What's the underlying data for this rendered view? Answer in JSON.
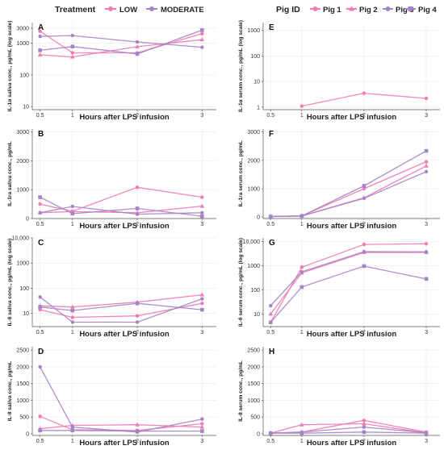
{
  "legends": {
    "treatment": {
      "title": "Treatment",
      "items": [
        {
          "label": "LOW",
          "color": "#f07ab3"
        },
        {
          "label": "MODERATE",
          "color": "#a483c6"
        }
      ]
    },
    "pig": {
      "title": "Pig ID",
      "items": [
        {
          "label": "Pig 1",
          "color": "#f07ab3",
          "marker": "circle"
        },
        {
          "label": "Pig 2",
          "color": "#f07ab3",
          "marker": "triangle"
        },
        {
          "label": "Pig 3",
          "color": "#a483c6",
          "marker": "circle"
        },
        {
          "label": "Pig 4",
          "color": "#a483c6",
          "marker": "square"
        }
      ]
    }
  },
  "chart_data": [
    {
      "panel": "A",
      "type": "line",
      "ylabel": "IL-1α saliva conc., pg/mL (log scale)",
      "xlabel": "Hours after LPS infusion",
      "scale": "log",
      "ylim": [
        8,
        4500
      ],
      "yticks": [
        10,
        100,
        1000,
        3000
      ],
      "yticklabels": [
        "10",
        "100",
        "1000",
        "3000"
      ],
      "x": [
        0.5,
        1,
        2,
        3
      ],
      "series": [
        {
          "color": "#f07ab3",
          "marker": "circle",
          "values": [
            2400,
            500,
            500,
            2000
          ]
        },
        {
          "color": "#f07ab3",
          "marker": "triangle",
          "values": [
            430,
            370,
            780,
            1300
          ]
        },
        {
          "color": "#a483c6",
          "marker": "circle",
          "values": [
            1650,
            1750,
            1100,
            750
          ]
        },
        {
          "color": "#a483c6",
          "marker": "square",
          "values": [
            600,
            790,
            460,
            2600
          ]
        }
      ]
    },
    {
      "panel": "B",
      "type": "line",
      "ylabel": "IL-1ra saliva conc., pg/mL",
      "xlabel": "Hours after LPS infusion",
      "scale": "linear",
      "ylim": [
        0,
        3100
      ],
      "yticks": [
        0,
        1000,
        2000,
        3000
      ],
      "yticklabels": [
        "0",
        "1000",
        "2000",
        "3000"
      ],
      "x": [
        0.5,
        1,
        2,
        3
      ],
      "series": [
        {
          "color": "#f07ab3",
          "marker": "circle",
          "values": [
            500,
            250,
            1080,
            740
          ]
        },
        {
          "color": "#f07ab3",
          "marker": "triangle",
          "values": [
            200,
            240,
            200,
            430
          ]
        },
        {
          "color": "#a483c6",
          "marker": "circle",
          "values": [
            200,
            420,
            150,
            200
          ]
        },
        {
          "color": "#a483c6",
          "marker": "square",
          "values": [
            740,
            170,
            350,
            80
          ]
        }
      ]
    },
    {
      "panel": "C",
      "type": "line",
      "ylabel": "IL-6 saliva conc., pg/mL (log scale)",
      "xlabel": "Hours after LPS infusion",
      "scale": "log",
      "ylim": [
        3,
        10000
      ],
      "yticks": [
        10,
        100,
        1000,
        10000
      ],
      "yticklabels": [
        "10",
        "100",
        "1000",
        "10,000"
      ],
      "x": [
        0.5,
        1,
        2,
        3
      ],
      "series": [
        {
          "color": "#f07ab3",
          "marker": "circle",
          "values": [
            14,
            7,
            8,
            25
          ]
        },
        {
          "color": "#f07ab3",
          "marker": "triangle",
          "values": [
            20,
            18,
            28,
            55
          ]
        },
        {
          "color": "#a483c6",
          "marker": "circle",
          "values": [
            45,
            4.5,
            4.5,
            38
          ]
        },
        {
          "color": "#a483c6",
          "marker": "square",
          "values": [
            18,
            13,
            25,
            14
          ]
        }
      ]
    },
    {
      "panel": "D",
      "type": "line",
      "ylabel": "IL-8 saliva conc., pg/mL",
      "xlabel": "Hours after LPS infusion",
      "scale": "linear",
      "ylim": [
        -50,
        2600
      ],
      "yticks": [
        0,
        500,
        1000,
        1500,
        2000,
        2500
      ],
      "yticklabels": [
        "0",
        "500",
        "1000",
        "1500",
        "2000",
        "2500"
      ],
      "x": [
        0.5,
        1,
        2,
        3
      ],
      "series": [
        {
          "color": "#f07ab3",
          "marker": "circle",
          "values": [
            520,
            120,
            100,
            300
          ]
        },
        {
          "color": "#f07ab3",
          "marker": "triangle",
          "values": [
            150,
            250,
            270,
            200
          ]
        },
        {
          "color": "#a483c6",
          "marker": "circle",
          "values": [
            2000,
            200,
            50,
            440
          ]
        },
        {
          "color": "#a483c6",
          "marker": "square",
          "values": [
            100,
            100,
            80,
            80
          ]
        }
      ]
    },
    {
      "panel": "E",
      "type": "line",
      "ylabel": "IL-1α serum conc., pg/mL (log scale)",
      "xlabel": "Hours after LPS infusion",
      "scale": "log",
      "ylim": [
        0.8,
        2000
      ],
      "yticks": [
        1,
        10,
        100,
        1000
      ],
      "yticklabels": [
        "1",
        "10",
        "100",
        "1000"
      ],
      "x": [
        0.5,
        1,
        2,
        3
      ],
      "series": [
        {
          "color": "#f07ab3",
          "marker": "circle",
          "points": [
            [
              1,
              1.1
            ],
            [
              2,
              3.5
            ],
            [
              3,
              2.2
            ]
          ]
        }
      ]
    },
    {
      "panel": "F",
      "type": "line",
      "ylabel": "IL-1ra serum conc., pg/mL",
      "xlabel": "Hours after LPS infusion",
      "scale": "linear",
      "ylim": [
        -50,
        3100
      ],
      "yticks": [
        0,
        1000,
        2000,
        3000
      ],
      "yticklabels": [
        "0",
        "1000",
        "2000",
        "3000"
      ],
      "x": [
        0.5,
        1,
        2,
        3
      ],
      "series": [
        {
          "color": "#f07ab3",
          "marker": "circle",
          "values": [
            20,
            40,
            1000,
            1950
          ]
        },
        {
          "color": "#f07ab3",
          "marker": "triangle",
          "values": [
            20,
            40,
            680,
            1800
          ]
        },
        {
          "color": "#a483c6",
          "marker": "circle",
          "values": [
            20,
            40,
            660,
            1600
          ]
        },
        {
          "color": "#a483c6",
          "marker": "square",
          "values": [
            20,
            40,
            1100,
            2330
          ]
        }
      ]
    },
    {
      "panel": "G",
      "type": "line",
      "ylabel": "IL-6 serum conc., pg/mL (log scale)",
      "xlabel": "Hours after LPS infusion",
      "scale": "log",
      "ylim": [
        3,
        14000
      ],
      "yticks": [
        10,
        100,
        1000,
        10000
      ],
      "yticklabels": [
        "10",
        "100",
        "1000",
        "10,000"
      ],
      "x": [
        0.5,
        1,
        2,
        3
      ],
      "series": [
        {
          "color": "#f07ab3",
          "marker": "circle",
          "values": [
            4.5,
            850,
            7500,
            8000
          ]
        },
        {
          "color": "#f07ab3",
          "marker": "triangle",
          "values": [
            10,
            500,
            3500,
            3500
          ]
        },
        {
          "color": "#a483c6",
          "marker": "circle",
          "values": [
            22,
            550,
            3800,
            3700
          ]
        },
        {
          "color": "#a483c6",
          "marker": "square",
          "values": [
            4.5,
            130,
            950,
            280
          ]
        }
      ]
    },
    {
      "panel": "H",
      "type": "line",
      "ylabel": "IL-8 serum conc., pg/mL",
      "xlabel": "Hours after LPS infusion",
      "scale": "linear",
      "ylim": [
        -50,
        2600
      ],
      "yticks": [
        0,
        500,
        1000,
        1500,
        2000,
        2500
      ],
      "yticklabels": [
        "0",
        "500",
        "1000",
        "1500",
        "2000",
        "2500"
      ],
      "x": [
        0.5,
        1,
        2,
        3
      ],
      "series": [
        {
          "color": "#f07ab3",
          "marker": "circle",
          "values": [
            20,
            50,
            400,
            50
          ]
        },
        {
          "color": "#f07ab3",
          "marker": "triangle",
          "values": [
            20,
            270,
            300,
            30
          ]
        },
        {
          "color": "#a483c6",
          "marker": "circle",
          "values": [
            20,
            50,
            200,
            30
          ]
        },
        {
          "color": "#a483c6",
          "marker": "square",
          "values": [
            20,
            20,
            50,
            20
          ]
        }
      ]
    }
  ]
}
